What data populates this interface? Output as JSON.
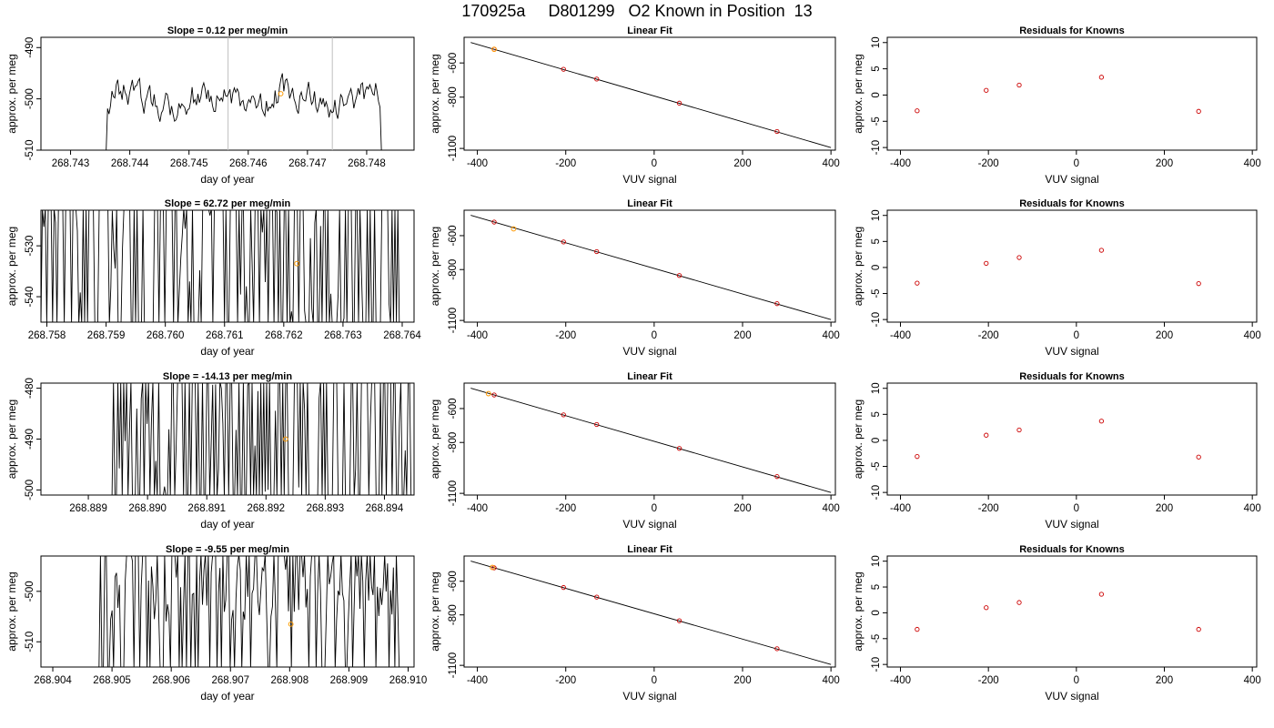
{
  "figure": {
    "title": "170925a     D801299   O2 Known in Position  13"
  },
  "colors": {
    "trace": "#000000",
    "known_point": "#cc0000",
    "highlight_point": "#ff9900",
    "marker_line": "#bfbfbf",
    "fit_line": "#000000"
  },
  "chart_data": [
    {
      "type": "line",
      "title": "Slope =  0.12  per meg/min",
      "xlabel": "day of year",
      "ylabel": "approx. per meg",
      "xlim": [
        268.7425,
        268.7488
      ],
      "ylim": [
        -510,
        -488
      ],
      "xticks": [
        "268.743",
        "268.744",
        "268.745",
        "268.746",
        "268.747",
        "268.748"
      ],
      "yticks": [
        "-490",
        "-500",
        "-510"
      ],
      "vlines": [
        268.74566,
        268.74742
      ],
      "highlight_point": {
        "x": 268.74655,
        "y": -499
      },
      "trace": {
        "x_start": 268.7436,
        "x_end": 268.74825,
        "mode": "smooth",
        "center": -500,
        "amplitude": 2,
        "seed": 1
      }
    },
    {
      "type": "line",
      "title": "Linear Fit",
      "xlabel": "VUV signal",
      "ylabel": "approx. per meg",
      "xlim": [
        -430,
        410
      ],
      "ylim": [
        -1110,
        -450
      ],
      "xticks": [
        "-400",
        "-200",
        "0",
        "200",
        "400"
      ],
      "yticks": [
        "-600",
        "-800",
        "-1100"
      ],
      "fit_line": {
        "x": [
          -415,
          400
        ],
        "y": [
          -480,
          -1095
        ]
      },
      "points": [
        {
          "x": -362,
          "y": -520
        },
        {
          "x": -205,
          "y": -637
        },
        {
          "x": -130,
          "y": -694
        },
        {
          "x": 57,
          "y": -835
        },
        {
          "x": 278,
          "y": -1001
        }
      ],
      "highlight_points": [
        {
          "x": -362,
          "y": -520
        }
      ]
    },
    {
      "type": "scatter",
      "title": "Residuals for Knowns",
      "xlabel": "VUV signal",
      "ylabel": "approx. per meg",
      "xlim": [
        -430,
        410
      ],
      "ylim": [
        -10.5,
        11
      ],
      "xticks": [
        "-400",
        "-200",
        "0",
        "200",
        "400"
      ],
      "yticks": [
        "10",
        "5",
        "0",
        "-5",
        "-10"
      ],
      "points": [
        {
          "x": -362,
          "y": -3.0
        },
        {
          "x": -205,
          "y": 0.9
        },
        {
          "x": -130,
          "y": 1.9
        },
        {
          "x": 57,
          "y": 3.4
        },
        {
          "x": 278,
          "y": -3.1
        }
      ]
    },
    {
      "type": "line",
      "title": "Slope =  62.72  per meg/min",
      "xlabel": "day of year",
      "ylabel": "approx. per meg",
      "xlim": [
        268.7579,
        268.7642
      ],
      "ylim": [
        -545,
        -523
      ],
      "xticks": [
        "268.758",
        "268.759",
        "268.760",
        "268.761",
        "268.762",
        "268.763",
        "268.764"
      ],
      "yticks": [
        "-530",
        "-540"
      ],
      "highlight_point": {
        "x": 268.76222,
        "y": -533.5
      },
      "trace": {
        "x_start": 268.7579,
        "x_end": 268.764,
        "mode": "spiky",
        "center": -523,
        "amplitude": 0,
        "seed": 2
      }
    },
    {
      "type": "line",
      "title": "Linear Fit",
      "xlabel": "VUV signal",
      "ylabel": "approx. per meg",
      "xlim": [
        -430,
        410
      ],
      "ylim": [
        -1110,
        -450
      ],
      "xticks": [
        "-400",
        "-200",
        "0",
        "200",
        "400"
      ],
      "yticks": [
        "-600",
        "-800",
        "-1100"
      ],
      "fit_line": {
        "x": [
          -415,
          400
        ],
        "y": [
          -480,
          -1095
        ]
      },
      "points": [
        {
          "x": -362,
          "y": -520
        },
        {
          "x": -205,
          "y": -637
        },
        {
          "x": -130,
          "y": -694
        },
        {
          "x": 57,
          "y": -835
        },
        {
          "x": 278,
          "y": -1001
        }
      ],
      "highlight_points": [
        {
          "x": -318,
          "y": -560
        }
      ]
    },
    {
      "type": "scatter",
      "title": "Residuals for Knowns",
      "xlabel": "VUV signal",
      "ylabel": "approx. per meg",
      "xlim": [
        -430,
        410
      ],
      "ylim": [
        -10.5,
        11
      ],
      "xticks": [
        "-400",
        "-200",
        "0",
        "200",
        "400"
      ],
      "yticks": [
        "10",
        "5",
        "0",
        "-5",
        "-10"
      ],
      "points": [
        {
          "x": -362,
          "y": -3.0
        },
        {
          "x": -205,
          "y": 0.8
        },
        {
          "x": -130,
          "y": 1.9
        },
        {
          "x": 57,
          "y": 3.3
        },
        {
          "x": 278,
          "y": -3.1
        }
      ]
    },
    {
      "type": "line",
      "title": "Slope =  -14.13  per meg/min",
      "xlabel": "day of year",
      "ylabel": "approx. per meg",
      "xlim": [
        268.8882,
        268.8945
      ],
      "ylim": [
        -501,
        -479
      ],
      "xticks": [
        "268.889",
        "268.890",
        "268.891",
        "268.892",
        "268.893",
        "268.894"
      ],
      "yticks": [
        "-480",
        "-490",
        "-500"
      ],
      "highlight_point": {
        "x": 268.89233,
        "y": -490
      },
      "trace": {
        "x_start": 268.8894,
        "x_end": 268.89445,
        "mode": "spiky",
        "center": -479,
        "amplitude": 0,
        "seed": 3
      }
    },
    {
      "type": "line",
      "title": "Linear Fit",
      "xlabel": "VUV signal",
      "ylabel": "approx. per meg",
      "xlim": [
        -430,
        410
      ],
      "ylim": [
        -1110,
        -450
      ],
      "xticks": [
        "-400",
        "-200",
        "0",
        "200",
        "400"
      ],
      "yticks": [
        "-600",
        "-800",
        "-1100"
      ],
      "fit_line": {
        "x": [
          -415,
          400
        ],
        "y": [
          -480,
          -1095
        ]
      },
      "points": [
        {
          "x": -362,
          "y": -520
        },
        {
          "x": -205,
          "y": -637
        },
        {
          "x": -130,
          "y": -694
        },
        {
          "x": 57,
          "y": -835
        },
        {
          "x": 278,
          "y": -1001
        }
      ],
      "highlight_points": [
        {
          "x": -375,
          "y": -512
        }
      ]
    },
    {
      "type": "scatter",
      "title": "Residuals for Knowns",
      "xlabel": "VUV signal",
      "ylabel": "approx. per meg",
      "xlim": [
        -430,
        410
      ],
      "ylim": [
        -10.5,
        11
      ],
      "xticks": [
        "-400",
        "-200",
        "0",
        "200",
        "400"
      ],
      "yticks": [
        "10",
        "5",
        "0",
        "-5",
        "-10"
      ],
      "points": [
        {
          "x": -362,
          "y": -3.1
        },
        {
          "x": -205,
          "y": 1.0
        },
        {
          "x": -130,
          "y": 2.0
        },
        {
          "x": 57,
          "y": 3.7
        },
        {
          "x": 278,
          "y": -3.2
        }
      ]
    },
    {
      "type": "line",
      "title": "Slope =  -9.55  per meg/min",
      "xlabel": "day of year",
      "ylabel": "approx. per meg",
      "xlim": [
        268.9038,
        268.9101
      ],
      "ylim": [
        -515,
        -493
      ],
      "xticks": [
        "268.904",
        "268.905",
        "268.906",
        "268.907",
        "268.908",
        "268.909",
        "268.910"
      ],
      "yticks": [
        "-500",
        "-510"
      ],
      "highlight_point": {
        "x": 268.90802,
        "y": -506.5
      },
      "trace": {
        "x_start": 268.90478,
        "x_end": 268.90985,
        "mode": "mixed",
        "center": -500,
        "amplitude": 3,
        "seed": 4
      }
    },
    {
      "type": "line",
      "title": "Linear Fit",
      "xlabel": "VUV signal",
      "ylabel": "approx. per meg",
      "xlim": [
        -430,
        410
      ],
      "ylim": [
        -1110,
        -450
      ],
      "xticks": [
        "-400",
        "-200",
        "0",
        "200",
        "400"
      ],
      "yticks": [
        "-600",
        "-800",
        "-1100"
      ],
      "fit_line": {
        "x": [
          -415,
          400
        ],
        "y": [
          -480,
          -1095
        ]
      },
      "points": [
        {
          "x": -362,
          "y": -520
        },
        {
          "x": -205,
          "y": -637
        },
        {
          "x": -130,
          "y": -694
        },
        {
          "x": 57,
          "y": -835
        },
        {
          "x": 278,
          "y": -1001
        }
      ],
      "highlight_points": [
        {
          "x": -366,
          "y": -518
        }
      ]
    },
    {
      "type": "scatter",
      "title": "Residuals for Knowns",
      "xlabel": "VUV signal",
      "ylabel": "approx. per meg",
      "xlim": [
        -430,
        410
      ],
      "ylim": [
        -10.5,
        11
      ],
      "xticks": [
        "-400",
        "-200",
        "0",
        "200",
        "400"
      ],
      "yticks": [
        "10",
        "5",
        "0",
        "-5",
        "-10"
      ],
      "points": [
        {
          "x": -362,
          "y": -3.2
        },
        {
          "x": -205,
          "y": 1.0
        },
        {
          "x": -130,
          "y": 2.0
        },
        {
          "x": 57,
          "y": 3.6
        },
        {
          "x": 278,
          "y": -3.2
        }
      ]
    }
  ]
}
